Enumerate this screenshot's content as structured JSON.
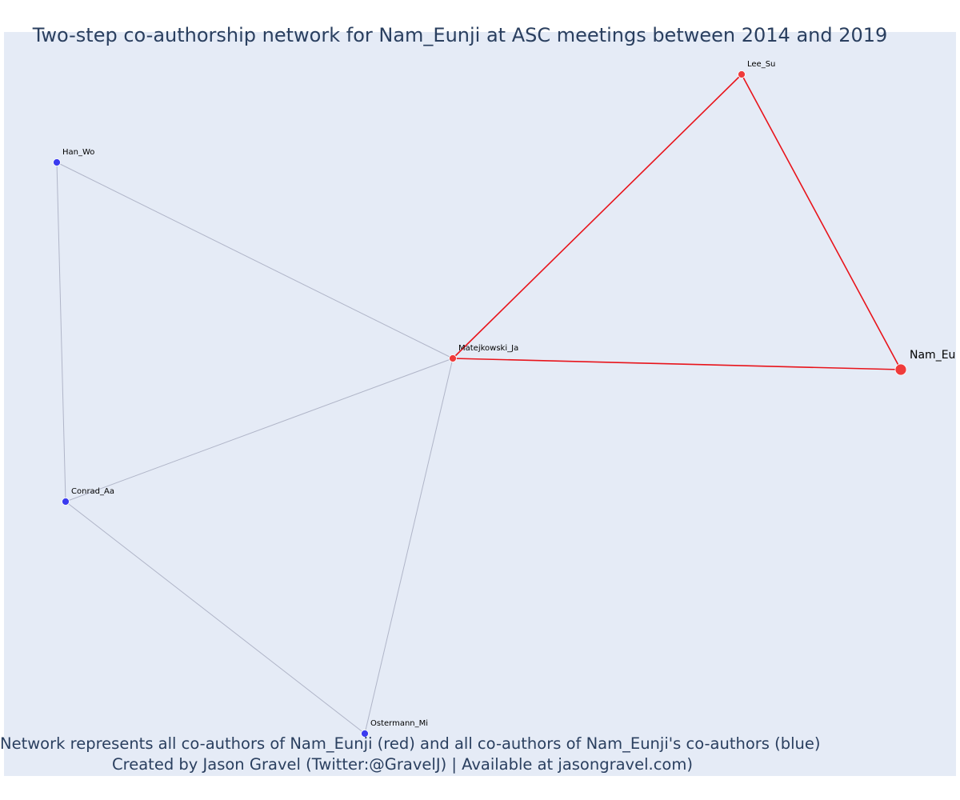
{
  "title": "Two-step co-authorship network for Nam_Eunji at ASC meetings between 2014 and 2019",
  "captions": [
    "Network represents all co-authors of Nam_Eunji (red) and all co-authors of Nam_Eunji's co-authors (blue)",
    "Created by Jason Gravel (Twitter:@GravelJ) | Available at jasongravel.com)"
  ],
  "colors": {
    "background": "#e5ebf6",
    "red_node": "#ef3b3b",
    "blue_node": "#3b3bef",
    "red_edge": "#e8141b",
    "gray_edge": "#b0b5c8",
    "title_text": "#2a3f5f"
  },
  "nodes": [
    {
      "id": "nam",
      "label": "Nam_Eu",
      "group": "focal"
    },
    {
      "id": "lee",
      "label": "Lee_Su",
      "group": "red"
    },
    {
      "id": "mat",
      "label": "Matejkowski_Ja",
      "group": "red"
    },
    {
      "id": "han",
      "label": "Han_Wo",
      "group": "blue"
    },
    {
      "id": "con",
      "label": "Conrad_Aa",
      "group": "blue"
    },
    {
      "id": "ost",
      "label": "Ostermann_Mi",
      "group": "blue"
    }
  ],
  "edges": [
    {
      "from": "lee",
      "to": "mat",
      "type": "red"
    },
    {
      "from": "lee",
      "to": "nam",
      "type": "red"
    },
    {
      "from": "mat",
      "to": "nam",
      "type": "red"
    },
    {
      "from": "han",
      "to": "mat",
      "type": "gray"
    },
    {
      "from": "han",
      "to": "con",
      "type": "gray"
    },
    {
      "from": "con",
      "to": "mat",
      "type": "gray"
    },
    {
      "from": "con",
      "to": "ost",
      "type": "gray"
    },
    {
      "from": "ost",
      "to": "mat",
      "type": "gray"
    }
  ]
}
